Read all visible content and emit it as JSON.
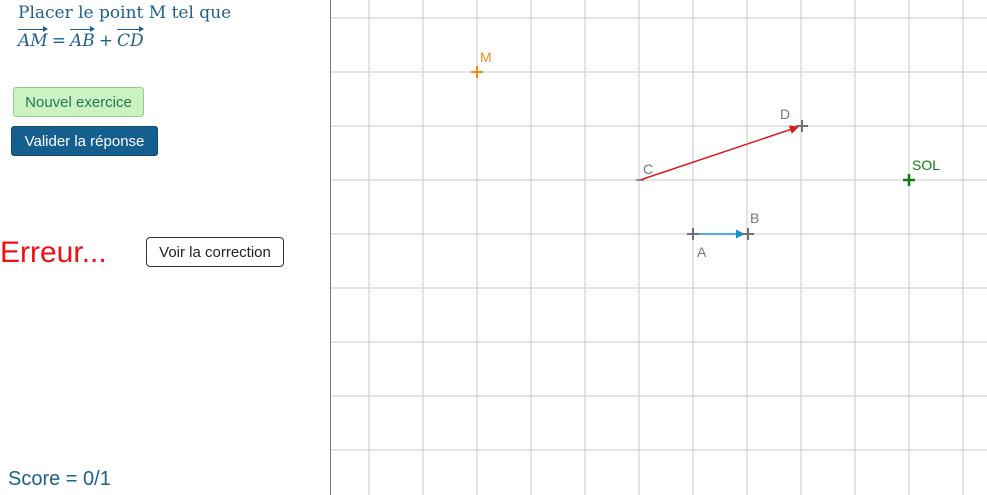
{
  "instruction": {
    "line1": "Placer le point M tel que",
    "vec_am": "AM",
    "eq": "=",
    "vec_ab": "AB",
    "plus": "+",
    "vec_cd": "CD"
  },
  "buttons": {
    "new_exercise": "Nouvel exercice",
    "validate": "Valider la réponse",
    "show_correction": "Voir la correction"
  },
  "feedback": "Erreur...",
  "score": "Score = 0/1",
  "points": {
    "M": "M",
    "A": "A",
    "B": "B",
    "C": "C",
    "D": "D",
    "SOL": "SOL"
  },
  "colors": {
    "grid": "#c8c8c8",
    "point_gray": "#707070",
    "point_M": "#f08c1a",
    "point_SOL": "#0e7a16",
    "vector_AB": "#1593c9",
    "vector_CD": "#e01616",
    "error": "#ee1111"
  }
}
